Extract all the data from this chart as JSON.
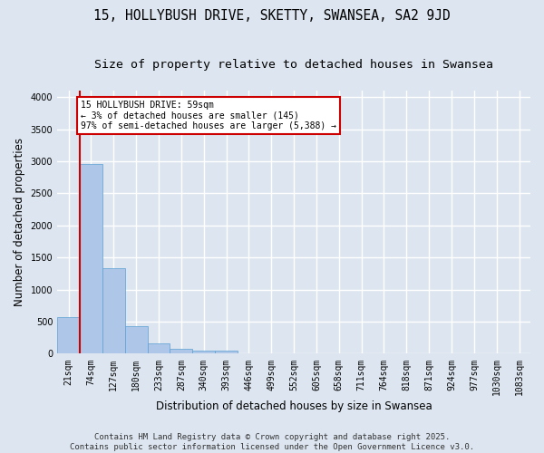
{
  "title_line1": "15, HOLLYBUSH DRIVE, SKETTY, SWANSEA, SA2 9JD",
  "title_line2": "Size of property relative to detached houses in Swansea",
  "xlabel": "Distribution of detached houses by size in Swansea",
  "ylabel": "Number of detached properties",
  "categories": [
    "21sqm",
    "74sqm",
    "127sqm",
    "180sqm",
    "233sqm",
    "287sqm",
    "340sqm",
    "393sqm",
    "446sqm",
    "499sqm",
    "552sqm",
    "605sqm",
    "658sqm",
    "711sqm",
    "764sqm",
    "818sqm",
    "871sqm",
    "924sqm",
    "977sqm",
    "1030sqm",
    "1083sqm"
  ],
  "values": [
    570,
    2960,
    1340,
    430,
    155,
    80,
    50,
    45,
    0,
    0,
    0,
    0,
    0,
    0,
    0,
    0,
    0,
    0,
    0,
    0,
    0
  ],
  "bar_color": "#aec6e8",
  "bar_edge_color": "#5a9fd4",
  "background_color": "#dde6f0",
  "grid_color": "#ffffff",
  "annotation_box_text": "15 HOLLYBUSH DRIVE: 59sqm\n← 3% of detached houses are smaller (145)\n97% of semi-detached houses are larger (5,388) →",
  "annotation_box_color": "#cc0000",
  "annotation_box_fill": "#ffffff",
  "ylim": [
    0,
    4100
  ],
  "yticks": [
    0,
    500,
    1000,
    1500,
    2000,
    2500,
    3000,
    3500,
    4000
  ],
  "footer_text": "Contains HM Land Registry data © Crown copyright and database right 2025.\nContains public sector information licensed under the Open Government Licence v3.0.",
  "title_fontsize": 10.5,
  "subtitle_fontsize": 9.5,
  "axis_label_fontsize": 8.5,
  "tick_fontsize": 7,
  "footer_fontsize": 6.5
}
